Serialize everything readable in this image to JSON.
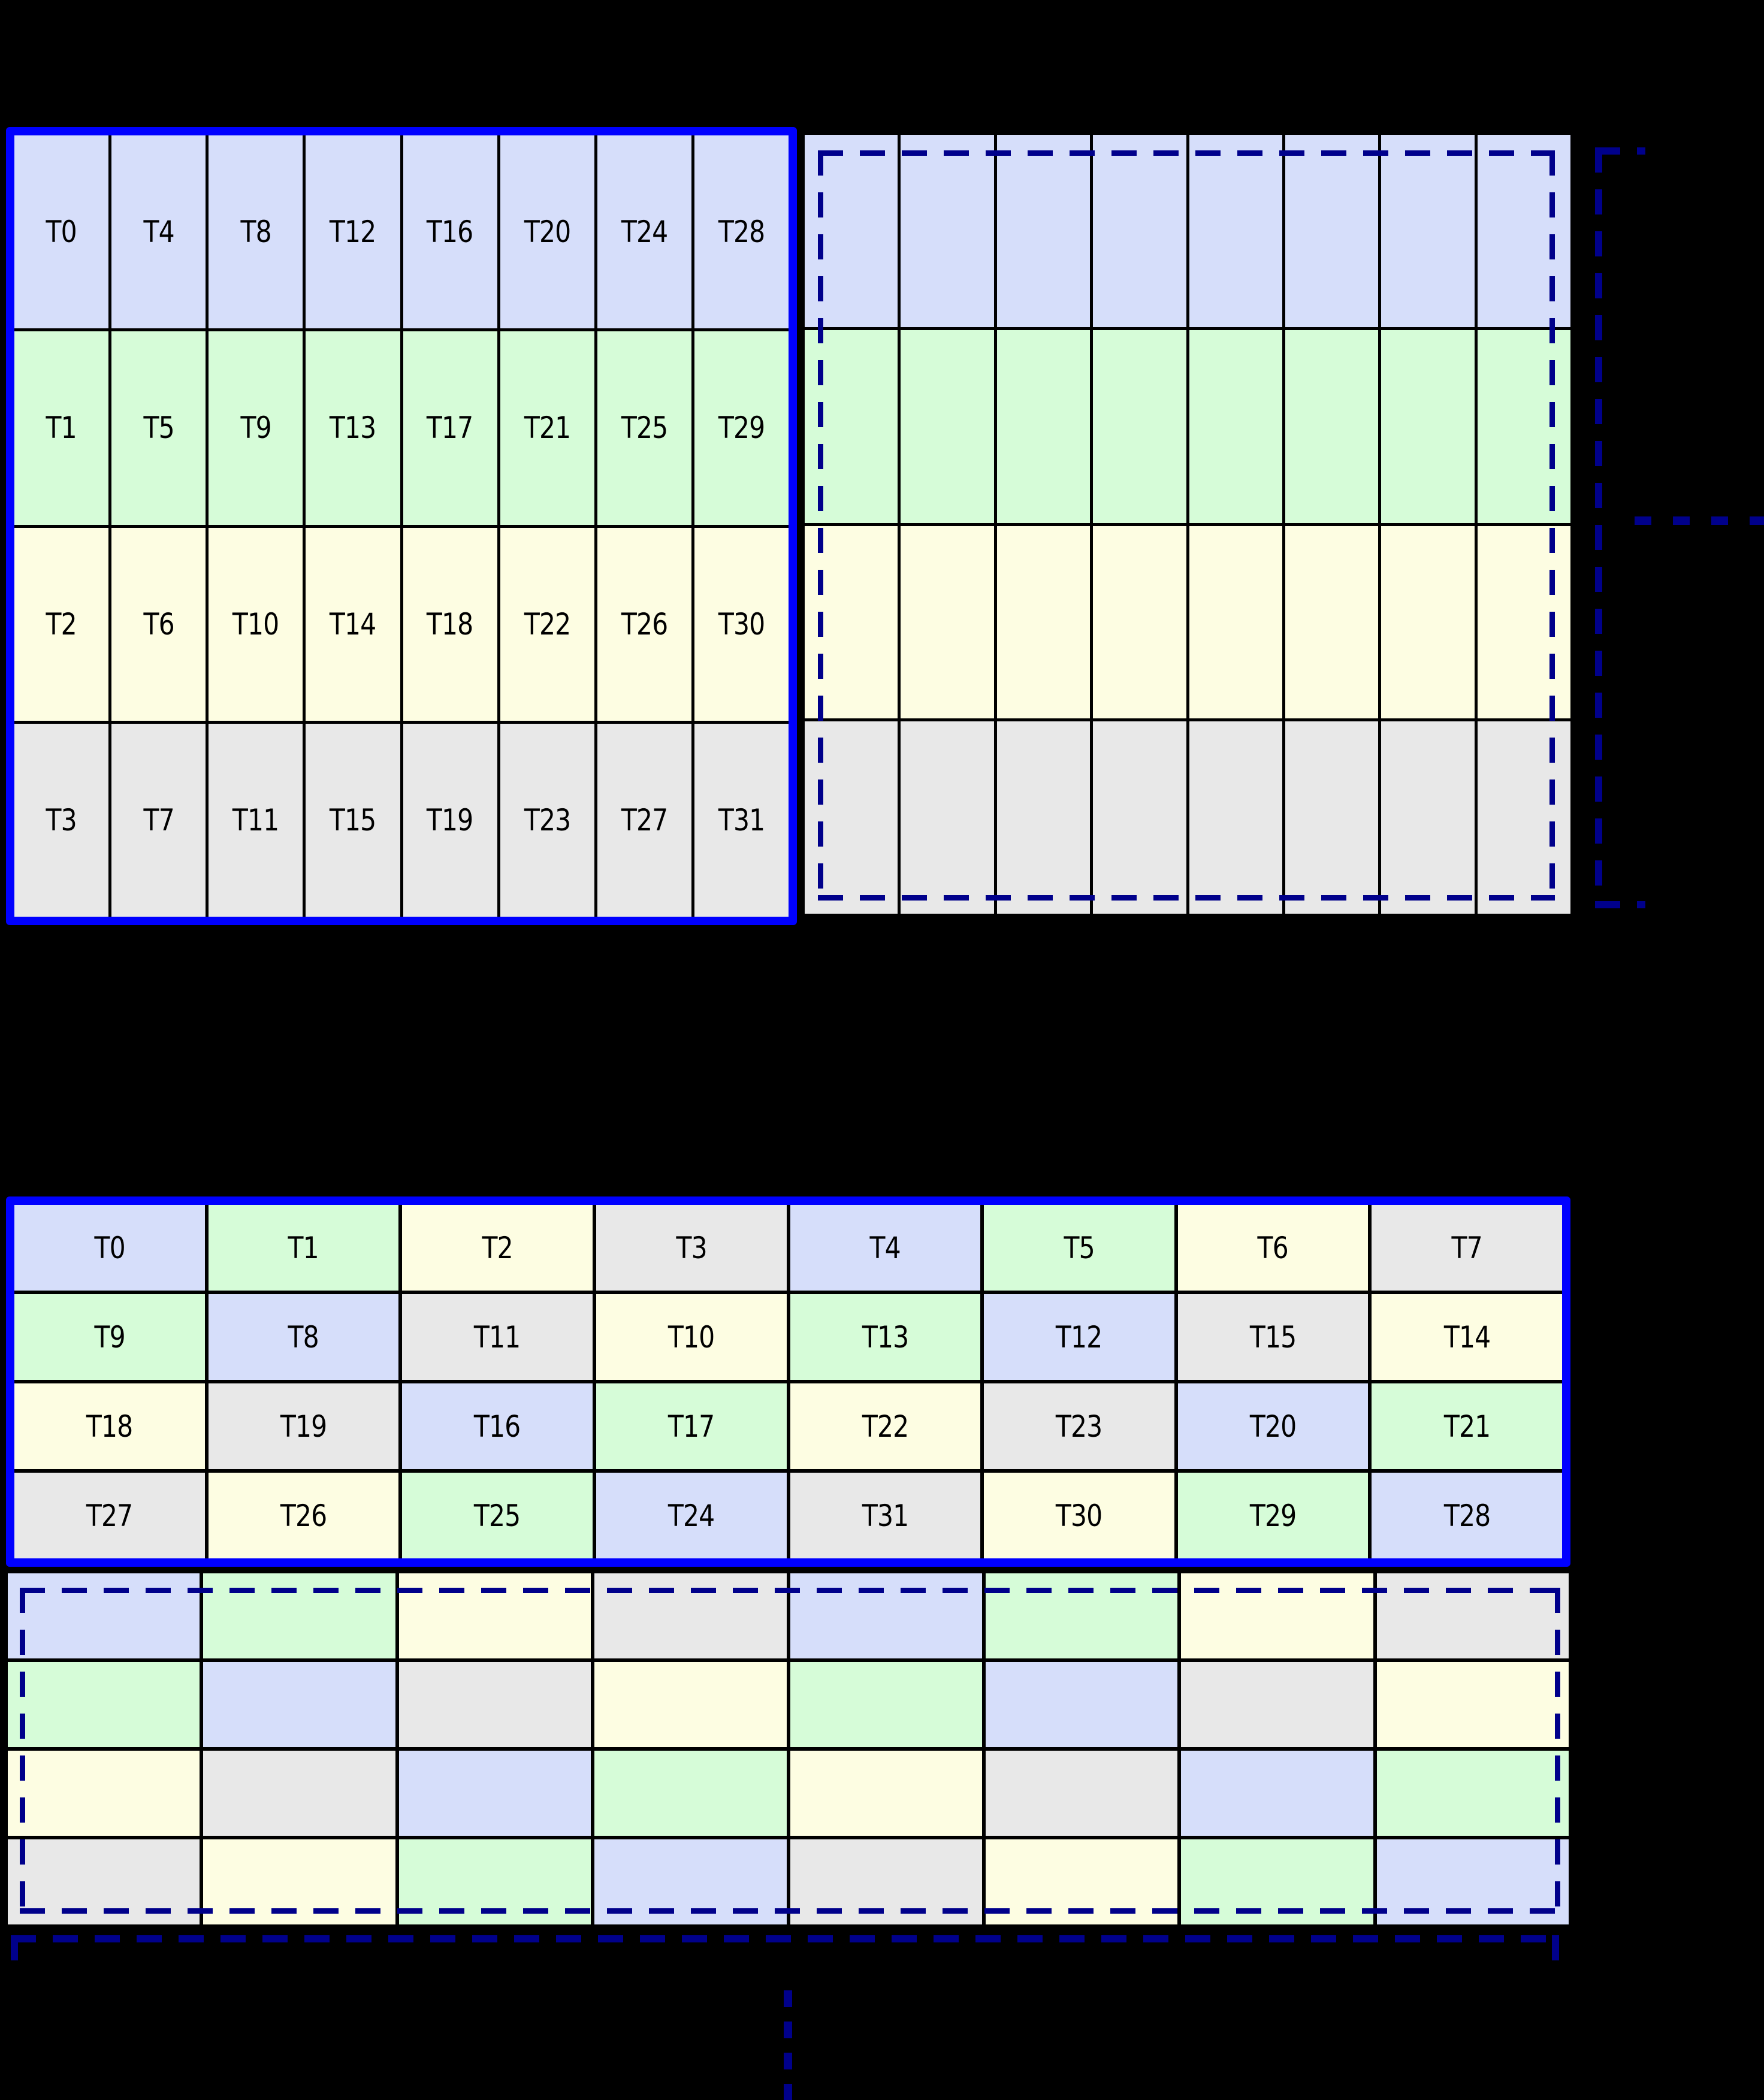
{
  "colors": {
    "background": "#000000",
    "solid_border_blue": "#0000ff",
    "dashed_navy": "#00008b",
    "grid_line": "#000000",
    "label": "#000000",
    "cell_colors": {
      "blue": "#d6defa",
      "green": "#d6fcd8",
      "yellow": "#fdfde2",
      "gray": "#e8e8e8"
    }
  },
  "grids": {
    "top_left": {
      "name": "column-major-thread-grid",
      "rows": 4,
      "cols": 8,
      "row_colors": [
        "blue",
        "green",
        "yellow",
        "gray"
      ],
      "labels": [
        [
          "T0",
          "T4",
          "T8",
          "T12",
          "T16",
          "T20",
          "T24",
          "T28"
        ],
        [
          "T1",
          "T5",
          "T9",
          "T13",
          "T17",
          "T21",
          "T25",
          "T29"
        ],
        [
          "T2",
          "T6",
          "T10",
          "T14",
          "T18",
          "T22",
          "T26",
          "T30"
        ],
        [
          "T3",
          "T7",
          "T11",
          "T15",
          "T19",
          "T23",
          "T27",
          "T31"
        ]
      ]
    },
    "top_right": {
      "name": "column-major-thread-grid-continuation",
      "rows": 4,
      "cols": 8,
      "row_colors": [
        "blue",
        "green",
        "yellow",
        "gray"
      ],
      "labels": null
    },
    "bottom_labeled": {
      "name": "swizzled-thread-grid",
      "rows": 4,
      "cols": 8,
      "labels": [
        [
          "T0",
          "T1",
          "T2",
          "T3",
          "T4",
          "T5",
          "T6",
          "T7"
        ],
        [
          "T9",
          "T8",
          "T11",
          "T10",
          "T13",
          "T12",
          "T15",
          "T14"
        ],
        [
          "T18",
          "T19",
          "T16",
          "T17",
          "T22",
          "T23",
          "T20",
          "T21"
        ],
        [
          "T27",
          "T26",
          "T25",
          "T24",
          "T31",
          "T30",
          "T29",
          "T28"
        ]
      ],
      "cell_colors": [
        [
          "blue",
          "green",
          "yellow",
          "gray",
          "blue",
          "green",
          "yellow",
          "gray"
        ],
        [
          "green",
          "blue",
          "gray",
          "yellow",
          "green",
          "blue",
          "gray",
          "yellow"
        ],
        [
          "yellow",
          "gray",
          "blue",
          "green",
          "yellow",
          "gray",
          "blue",
          "green"
        ],
        [
          "gray",
          "yellow",
          "green",
          "blue",
          "gray",
          "yellow",
          "green",
          "blue"
        ]
      ]
    },
    "bottom_unlabeled": {
      "name": "swizzled-thread-grid-continuation",
      "rows": 4,
      "cols": 8,
      "labels": null,
      "cell_colors": [
        [
          "blue",
          "green",
          "yellow",
          "gray",
          "blue",
          "green",
          "yellow",
          "gray"
        ],
        [
          "green",
          "blue",
          "gray",
          "yellow",
          "green",
          "blue",
          "gray",
          "yellow"
        ],
        [
          "yellow",
          "gray",
          "blue",
          "green",
          "yellow",
          "gray",
          "blue",
          "green"
        ],
        [
          "gray",
          "yellow",
          "green",
          "blue",
          "gray",
          "yellow",
          "green",
          "blue"
        ]
      ]
    }
  },
  "continuation": {
    "right_ellipsis_dots": 4,
    "bottom_ellipsis_dots": 4
  }
}
